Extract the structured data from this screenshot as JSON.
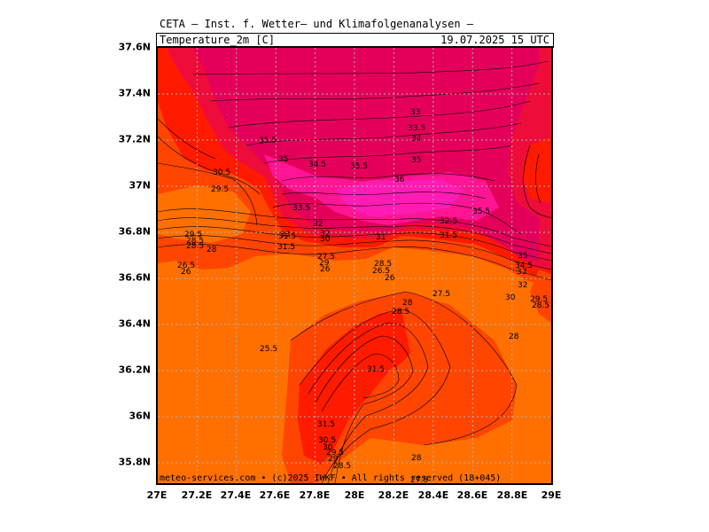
{
  "header": {
    "line1": "CETA – Inst. f. Wetter– und Klimafolgenanalysen –",
    "field": "Temperature_2m [C]",
    "datetime": "19.07.2025 15 UTC"
  },
  "footer": {
    "copyright": "meteo-services.com • (c)2025 IWKF • All rights reserved (18+045)"
  },
  "axes": {
    "x_ticks": [
      "27E",
      "27.2E",
      "27.4E",
      "27.6E",
      "27.8E",
      "28E",
      "28.2E",
      "28.4E",
      "28.6E",
      "28.8E",
      "29E"
    ],
    "y_ticks": [
      "37.6N",
      "37.4N",
      "37.2N",
      "37N",
      "36.8N",
      "36.6N",
      "36.4N",
      "36.2N",
      "36N",
      "35.8N"
    ]
  },
  "colors": {
    "orange": "#ff7000",
    "red_orange": "#ff4500",
    "red": "#ff1a00",
    "crimson": "#ee0d3a",
    "magenta_red": "#e4005a",
    "magenta": "#ff1493",
    "pink": "#ff1cb4",
    "grid": "#b0b0b0"
  },
  "contour_labels": [
    {
      "t": "33"
    },
    {
      "t": "33.5"
    },
    {
      "t": "34"
    },
    {
      "t": "35"
    },
    {
      "t": "35.5"
    },
    {
      "t": "34.5"
    },
    {
      "t": "35.5"
    },
    {
      "t": "36"
    },
    {
      "t": "35"
    },
    {
      "t": "33.5"
    },
    {
      "t": "35.5"
    },
    {
      "t": "32"
    },
    {
      "t": "31.5"
    },
    {
      "t": "30.5"
    },
    {
      "t": "29.5"
    },
    {
      "t": "28.5"
    },
    {
      "t": "28"
    },
    {
      "t": "26.5"
    },
    {
      "t": "26"
    },
    {
      "t": "29.5"
    },
    {
      "t": "28.5"
    },
    {
      "t": "33"
    },
    {
      "t": "31.5"
    },
    {
      "t": "32"
    },
    {
      "t": "30"
    },
    {
      "t": "27.5"
    },
    {
      "t": "29"
    },
    {
      "t": "26"
    },
    {
      "t": "28.5"
    },
    {
      "t": "26.5"
    },
    {
      "t": "26"
    },
    {
      "t": "31"
    },
    {
      "t": "32.5"
    },
    {
      "t": "31.5"
    },
    {
      "t": "35"
    },
    {
      "t": "34.5"
    },
    {
      "t": "33"
    },
    {
      "t": "32"
    },
    {
      "t": "30"
    },
    {
      "t": "29.5"
    },
    {
      "t": "28.5"
    },
    {
      "t": "28"
    },
    {
      "t": "27.5"
    },
    {
      "t": "28.5"
    },
    {
      "t": "28"
    },
    {
      "t": "25.5"
    },
    {
      "t": "31.5"
    },
    {
      "t": "31.5"
    },
    {
      "t": "30.5"
    },
    {
      "t": "30"
    },
    {
      "t": "29.5"
    },
    {
      "t": "29"
    },
    {
      "t": "28.5"
    },
    {
      "t": "28"
    },
    {
      "t": "27.5"
    }
  ]
}
